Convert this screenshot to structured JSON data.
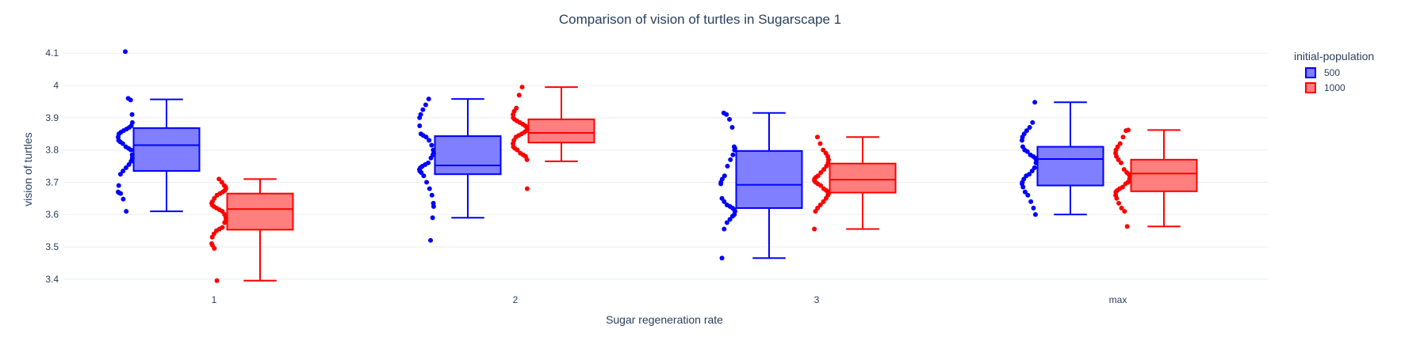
{
  "chart_data": {
    "type": "box",
    "title": "Comparison of vision of turtles in Sugarscape 1",
    "xlabel": "Sugar regeneration rate",
    "ylabel": "vision of turtles",
    "categories": [
      "1",
      "2",
      "3",
      "max"
    ],
    "ylim": [
      3.37,
      4.13
    ],
    "yticks": [
      3.4,
      3.5,
      3.6,
      3.7,
      3.8,
      3.9,
      4,
      4.1
    ],
    "ytick_labels": [
      "3.4",
      "3.5",
      "3.6",
      "3.7",
      "3.8",
      "3.9",
      "4",
      "4.1"
    ],
    "grid": true,
    "legend": {
      "title": "initial-population",
      "position": "top-right"
    },
    "series": [
      {
        "name": "500",
        "color": "#0000ff",
        "fill": "#7f7fff",
        "boxes": [
          {
            "category": "1",
            "min": 3.61,
            "q1": 3.735,
            "median": 3.815,
            "q3": 3.868,
            "max": 3.957
          },
          {
            "category": "2",
            "min": 3.59,
            "q1": 3.725,
            "median": 3.752,
            "q3": 3.843,
            "max": 3.958
          },
          {
            "category": "3",
            "min": 3.465,
            "q1": 3.62,
            "median": 3.692,
            "q3": 3.797,
            "max": 3.915
          },
          {
            "category": "max",
            "min": 3.6,
            "q1": 3.69,
            "median": 3.772,
            "q3": 3.81,
            "max": 3.948
          }
        ],
        "points": {
          "1": [
            4.105,
            3.96,
            3.955,
            3.91,
            3.885,
            3.875,
            3.87,
            3.865,
            3.86,
            3.855,
            3.85,
            3.84,
            3.83,
            3.825,
            3.82,
            3.81,
            3.805,
            3.8,
            3.785,
            3.775,
            3.765,
            3.755,
            3.745,
            3.735,
            3.725,
            3.69,
            3.67,
            3.668,
            3.665,
            3.648,
            3.61
          ],
          "2": [
            3.958,
            3.94,
            3.925,
            3.91,
            3.9,
            3.875,
            3.85,
            3.845,
            3.84,
            3.83,
            3.815,
            3.8,
            3.79,
            3.785,
            3.775,
            3.76,
            3.755,
            3.75,
            3.745,
            3.74,
            3.735,
            3.73,
            3.72,
            3.7,
            3.68,
            3.66,
            3.635,
            3.625,
            3.59,
            3.52
          ],
          "3": [
            3.915,
            3.91,
            3.895,
            3.87,
            3.81,
            3.805,
            3.8,
            3.785,
            3.77,
            3.75,
            3.72,
            3.71,
            3.7,
            3.695,
            3.65,
            3.64,
            3.63,
            3.625,
            3.62,
            3.615,
            3.61,
            3.6,
            3.595,
            3.585,
            3.575,
            3.555,
            3.465
          ],
          "max": [
            3.948,
            3.885,
            3.87,
            3.86,
            3.85,
            3.84,
            3.83,
            3.81,
            3.8,
            3.795,
            3.785,
            3.78,
            3.775,
            3.77,
            3.76,
            3.745,
            3.735,
            3.725,
            3.72,
            3.71,
            3.7,
            3.695,
            3.685,
            3.67,
            3.66,
            3.64,
            3.62,
            3.6
          ]
        }
      },
      {
        "name": "1000",
        "color": "#ff0000",
        "fill": "#ff7f7f",
        "boxes": [
          {
            "category": "1",
            "min": 3.395,
            "q1": 3.553,
            "median": 3.617,
            "q3": 3.665,
            "max": 3.71
          },
          {
            "category": "2",
            "min": 3.765,
            "q1": 3.823,
            "median": 3.853,
            "q3": 3.895,
            "max": 3.995
          },
          {
            "category": "3",
            "min": 3.555,
            "q1": 3.668,
            "median": 3.708,
            "q3": 3.758,
            "max": 3.84
          },
          {
            "category": "max",
            "min": 3.563,
            "q1": 3.672,
            "median": 3.727,
            "q3": 3.77,
            "max": 3.862
          }
        ],
        "points": {
          "1": [
            3.71,
            3.7,
            3.69,
            3.685,
            3.68,
            3.675,
            3.67,
            3.665,
            3.66,
            3.65,
            3.64,
            3.635,
            3.63,
            3.625,
            3.62,
            3.615,
            3.61,
            3.6,
            3.59,
            3.58,
            3.575,
            3.56,
            3.555,
            3.55,
            3.54,
            3.53,
            3.51,
            3.505,
            3.495,
            3.395
          ],
          "2": [
            3.995,
            3.97,
            3.93,
            3.92,
            3.91,
            3.9,
            3.895,
            3.89,
            3.885,
            3.88,
            3.875,
            3.87,
            3.865,
            3.86,
            3.855,
            3.85,
            3.845,
            3.84,
            3.83,
            3.82,
            3.81,
            3.805,
            3.8,
            3.79,
            3.785,
            3.78,
            3.77,
            3.68
          ],
          "3": [
            3.84,
            3.82,
            3.8,
            3.79,
            3.78,
            3.77,
            3.76,
            3.75,
            3.74,
            3.73,
            3.72,
            3.715,
            3.71,
            3.705,
            3.7,
            3.695,
            3.69,
            3.68,
            3.675,
            3.67,
            3.665,
            3.66,
            3.65,
            3.64,
            3.63,
            3.62,
            3.61,
            3.555
          ],
          "max": [
            3.862,
            3.86,
            3.84,
            3.82,
            3.81,
            3.8,
            3.79,
            3.78,
            3.77,
            3.76,
            3.74,
            3.73,
            3.725,
            3.72,
            3.71,
            3.7,
            3.695,
            3.685,
            3.68,
            3.675,
            3.67,
            3.66,
            3.65,
            3.635,
            3.62,
            3.61,
            3.563
          ]
        }
      }
    ]
  }
}
